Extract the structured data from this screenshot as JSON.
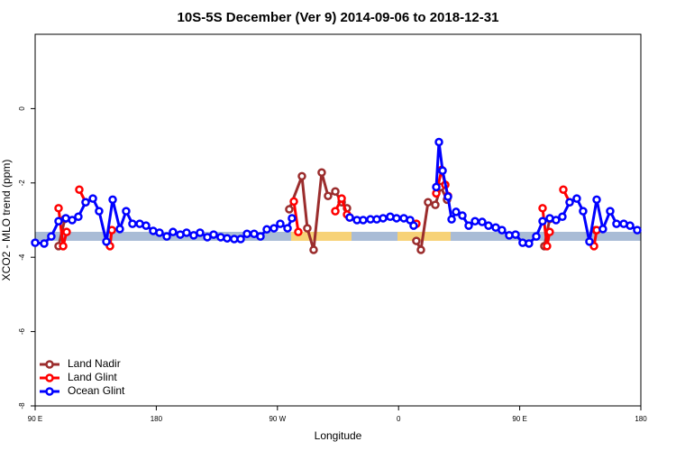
{
  "chart_data": {
    "type": "line",
    "title": "10S-5S December (Ver 9)   2014-09-06 to 2018-12-31",
    "x_label": "Longitude",
    "y_label": "XCO2 - MLO trend (ppm)",
    "xlim": [
      90,
      540
    ],
    "ylim": [
      -8,
      2
    ],
    "xticks": [
      {
        "value": 90,
        "label": "90 E"
      },
      180,
      {
        "value": 270,
        "label": "90 W"
      },
      {
        "value": 360,
        "label": "0"
      },
      {
        "value": 450,
        "label": "90 E"
      },
      {
        "value": 540,
        "label": "180"
      }
    ],
    "yticks": [
      0,
      -2,
      -4,
      -6,
      -8
    ],
    "legend": "bottom-left",
    "series": [
      {
        "name": "Land Nadir",
        "color": "#9b2d2d",
        "x": [
          107.4,
          112.1,
          200,
          278.8,
          288.2,
          292.2,
          296.9,
          302.9,
          307.6,
          313,
          317.7,
          321.7,
          350,
          373.2,
          376.6,
          381.9,
          387.3,
          391.3,
          396,
          430,
          468.3,
          472.3,
          490,
          506.5
        ],
        "values": [
          -3.7,
          -2.97,
          null,
          -2.71,
          -1.82,
          -3.22,
          -3.8,
          -1.72,
          -2.35,
          -2.23,
          -2.52,
          -2.68,
          null,
          -3.56,
          -3.8,
          -2.52,
          -2.59,
          -2.11,
          -2.45,
          null,
          -3.7,
          -2.97,
          null,
          -3.27
        ]
      },
      {
        "name": "Land Glint",
        "color": "#ff0000",
        "x": [
          107.4,
          110.8,
          113.4,
          118,
          122.8,
          127.5,
          135,
          145.6,
          147,
          200,
          282.2,
          285.5,
          300,
          313,
          317.7,
          321.7,
          323.7,
          350,
          373.2,
          380,
          388,
          392,
          394.7,
          396.7,
          430,
          467,
          470.3,
          472.3,
          478,
          482.4,
          487.1,
          495,
          505.2,
          507.2
        ],
        "values": [
          -2.68,
          -3.7,
          -3.32,
          null,
          -2.18,
          -2.52,
          null,
          -3.7,
          -3.27,
          null,
          -2.5,
          -3.32,
          null,
          -2.76,
          -2.42,
          -2.85,
          -2.93,
          null,
          -3.1,
          null,
          -2.28,
          -1.65,
          -2.05,
          -2.35,
          null,
          -2.68,
          -3.7,
          -3.32,
          null,
          -2.18,
          -2.52,
          null,
          -3.7,
          -3.27
        ]
      },
      {
        "name": "Ocean Glint",
        "color": "#0000ff",
        "x": [
          90,
          96.7,
          102,
          107.4,
          112.8,
          117.5,
          122.1,
          127.5,
          132.9,
          137.5,
          142.9,
          147.6,
          152.9,
          157.6,
          162.3,
          167.7,
          172.4,
          177.7,
          182.4,
          187.8,
          192.4,
          197.8,
          202.5,
          207.8,
          212.5,
          217.9,
          222.6,
          227.9,
          232.6,
          237.9,
          242.7,
          247.4,
          252.7,
          257.4,
          262.1,
          267.4,
          272.1,
          277.5,
          280.8,
          300,
          323.7,
          329.1,
          333.7,
          339.1,
          343.8,
          348.5,
          353.8,
          358.5,
          363.9,
          368.6,
          371.2,
          375,
          388,
          390,
          392.7,
          396.7,
          399.4,
          402.7,
          407.4,
          412.1,
          416.8,
          422.1,
          426.8,
          432.2,
          436.8,
          442.2,
          446.9,
          452.2,
          456.9,
          462.3,
          467,
          472.3,
          477,
          481.7,
          487.1,
          492.4,
          497.1,
          501.8,
          507.2,
          511.8,
          517.2,
          521.9,
          527.3,
          532,
          537.3
        ],
        "values": [
          -3.61,
          -3.63,
          -3.44,
          -3.03,
          -2.95,
          -3.0,
          -2.91,
          -2.52,
          -2.42,
          -2.76,
          -3.58,
          -2.45,
          -3.24,
          -2.76,
          -3.1,
          -3.1,
          -3.15,
          -3.29,
          -3.34,
          -3.44,
          -3.32,
          -3.39,
          -3.34,
          -3.41,
          -3.34,
          -3.46,
          -3.39,
          -3.46,
          -3.49,
          -3.51,
          -3.51,
          -3.37,
          -3.37,
          -3.44,
          -3.25,
          -3.22,
          -3.1,
          -3.22,
          -2.95,
          null,
          -2.93,
          -3.0,
          -3.0,
          -2.98,
          -2.98,
          -2.95,
          -2.91,
          -2.95,
          -2.95,
          -3.0,
          -3.15,
          null,
          -2.11,
          -0.9,
          -1.67,
          -2.37,
          -2.98,
          -2.78,
          -2.88,
          -3.15,
          -3.03,
          -3.05,
          -3.15,
          -3.2,
          -3.27,
          -3.41,
          -3.39,
          -3.61,
          -3.63,
          -3.44,
          -3.03,
          -2.95,
          -3.0,
          -2.91,
          -2.52,
          -2.42,
          -2.76,
          -3.58,
          -2.45,
          -3.24,
          -2.76,
          -3.1,
          -3.1,
          -3.15,
          -3.27
        ]
      }
    ]
  }
}
